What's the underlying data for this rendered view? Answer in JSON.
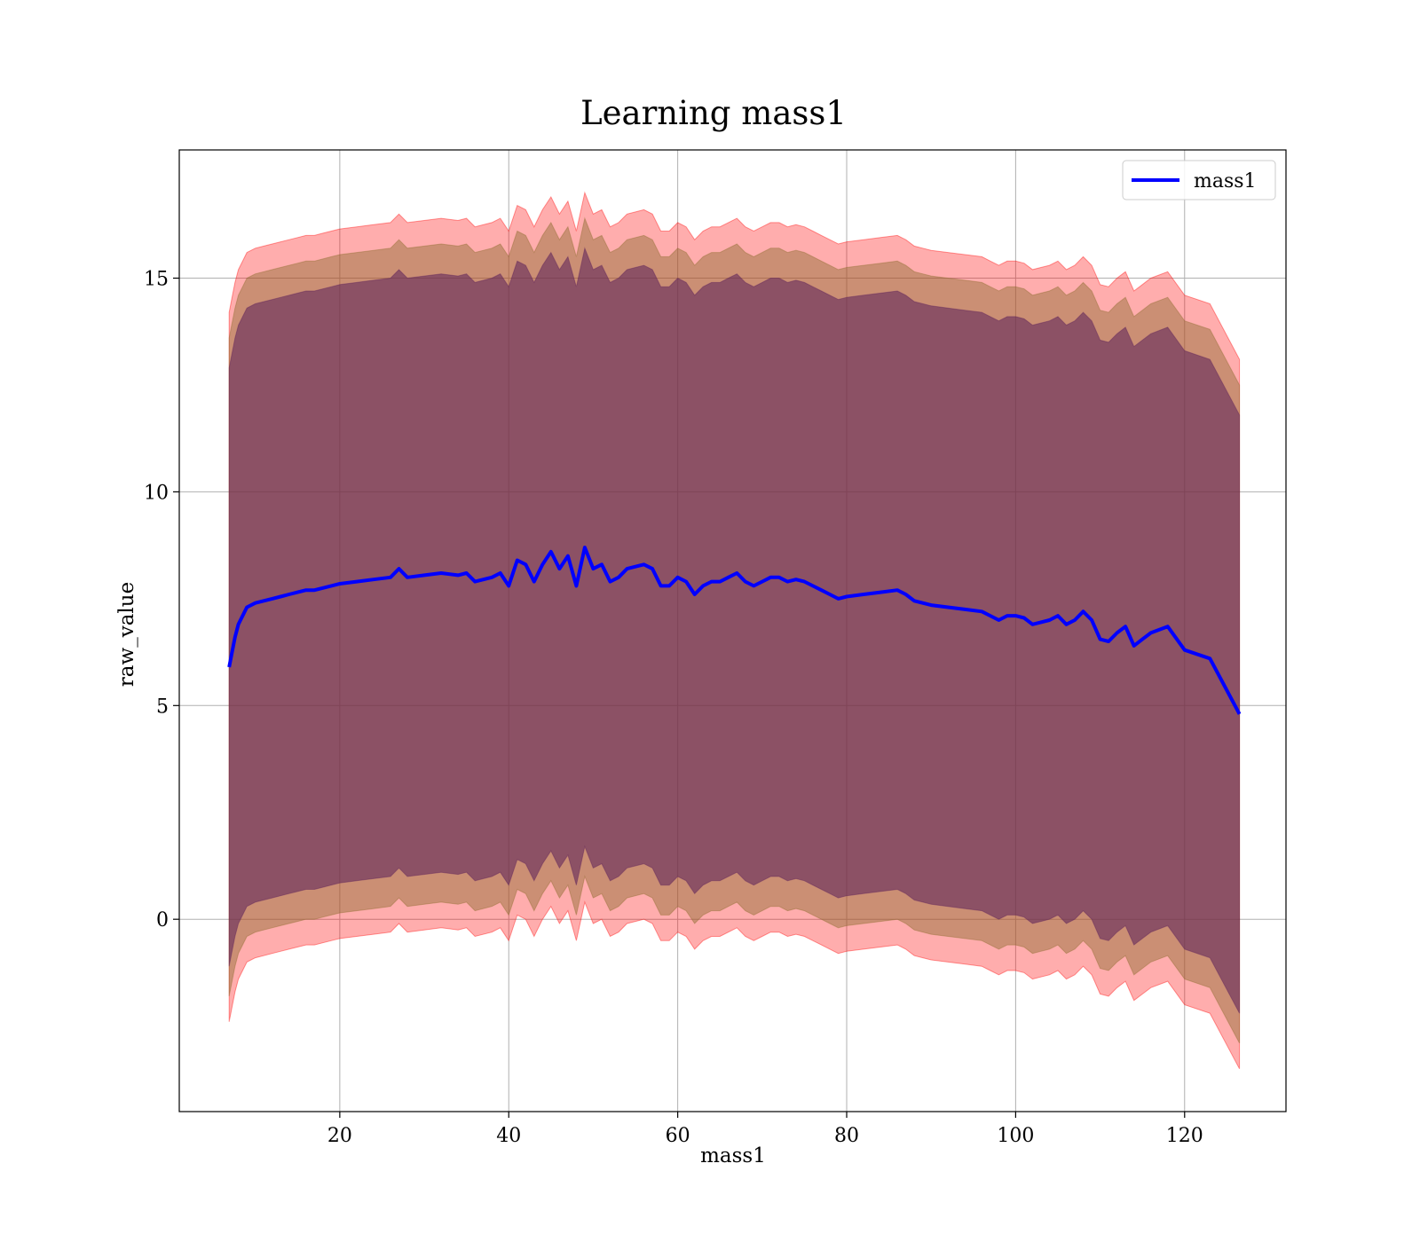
{
  "chart_data": {
    "type": "line",
    "title": "Learning mass1",
    "xlabel": "mass1",
    "ylabel": "raw_value",
    "xlim": [
      1,
      132
    ],
    "ylim": [
      -4.5,
      18
    ],
    "xticks": [
      20,
      40,
      60,
      80,
      100,
      120
    ],
    "yticks": [
      0,
      5,
      10,
      15
    ],
    "grid": true,
    "legend": {
      "position": "upper right",
      "entries": [
        "mass1"
      ]
    },
    "colors": {
      "line": "#0000ff",
      "band_outer": "#ff0000",
      "band_mid": "#8b6b2e",
      "band_inner": "#5a1f5a",
      "grid": "#b0b0b0"
    },
    "series": [
      {
        "name": "mass1",
        "x": [
          6.9,
          7.2,
          7.6,
          8.0,
          8.5,
          9.0,
          10,
          11,
          12,
          13,
          14,
          15,
          16,
          17,
          18,
          19,
          20,
          22,
          24,
          26,
          27,
          28,
          30,
          32,
          34,
          35,
          36,
          38,
          39,
          40,
          41,
          42,
          43,
          44,
          45,
          46,
          47,
          48,
          49,
          50,
          51,
          52,
          53,
          54,
          55,
          56,
          57,
          58,
          59,
          60,
          61,
          62,
          63,
          64,
          65,
          66,
          67,
          68,
          69,
          70,
          71,
          72,
          73,
          74,
          75,
          76,
          77,
          78,
          79,
          80,
          82,
          84,
          86,
          87,
          88,
          89,
          90,
          92,
          94,
          96,
          97,
          98,
          99,
          100,
          101,
          102,
          103,
          104,
          105,
          106,
          107,
          108,
          109,
          110,
          111,
          112,
          113,
          114,
          115,
          116,
          118,
          120,
          123,
          126.5
        ],
        "y": [
          5.9,
          6.2,
          6.6,
          6.9,
          7.1,
          7.3,
          7.4,
          7.45,
          7.5,
          7.55,
          7.6,
          7.65,
          7.7,
          7.7,
          7.75,
          7.8,
          7.85,
          7.9,
          7.95,
          8.0,
          8.2,
          8.0,
          8.05,
          8.1,
          8.05,
          8.1,
          7.9,
          8.0,
          8.1,
          7.8,
          8.4,
          8.3,
          7.9,
          8.3,
          8.6,
          8.2,
          8.5,
          7.8,
          8.7,
          8.2,
          8.3,
          7.9,
          8.0,
          8.2,
          8.25,
          8.3,
          8.2,
          7.8,
          7.8,
          8.0,
          7.9,
          7.6,
          7.8,
          7.9,
          7.9,
          8.0,
          8.1,
          7.9,
          7.8,
          7.9,
          8.0,
          8.0,
          7.9,
          7.95,
          7.9,
          7.8,
          7.7,
          7.6,
          7.5,
          7.55,
          7.6,
          7.65,
          7.7,
          7.6,
          7.45,
          7.4,
          7.35,
          7.3,
          7.25,
          7.2,
          7.1,
          7.0,
          7.1,
          7.1,
          7.05,
          6.9,
          6.95,
          7.0,
          7.1,
          6.9,
          7.0,
          7.2,
          7.0,
          6.55,
          6.5,
          6.7,
          6.85,
          6.4,
          6.55,
          6.7,
          6.85,
          6.3,
          6.1,
          4.8
        ]
      }
    ],
    "bands": [
      {
        "series": "mass1",
        "half_width": 8.3
      },
      {
        "series": "mass1",
        "half_width": 7.7
      },
      {
        "series": "mass1",
        "half_width": 7.0
      }
    ]
  }
}
